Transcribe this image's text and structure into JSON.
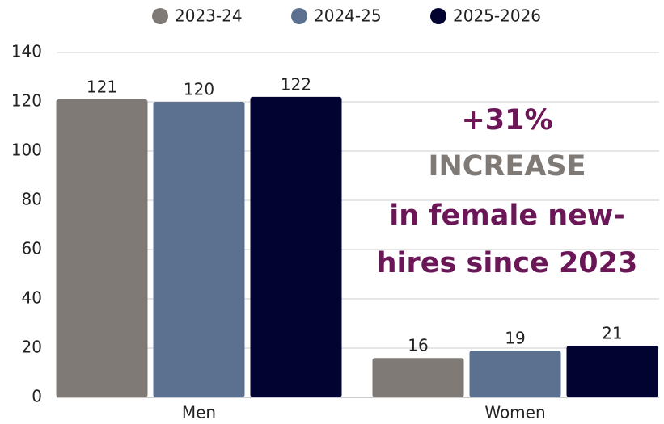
{
  "chart_data": {
    "type": "bar",
    "categories": [
      "Men",
      "Women"
    ],
    "series": [
      {
        "name": "2023-24",
        "color": "#7f7a76",
        "values": [
          121,
          16
        ]
      },
      {
        "name": "2024-25",
        "color": "#5c7090",
        "values": [
          120,
          19
        ]
      },
      {
        "name": "2025-2026",
        "color": "#020330",
        "values": [
          122,
          21
        ]
      }
    ],
    "ylim": [
      0,
      140
    ],
    "yticks": [
      0,
      20,
      40,
      60,
      80,
      100,
      120,
      140
    ],
    "grid": true,
    "legend": "top",
    "annotations": [
      {
        "text": "+31%",
        "color": "#6b1657"
      },
      {
        "text": "INCREASE",
        "color": "#7f7a76"
      },
      {
        "text": "in female new-",
        "color": "#6b1657"
      },
      {
        "text": "hires since 2023",
        "color": "#6b1657"
      }
    ]
  }
}
